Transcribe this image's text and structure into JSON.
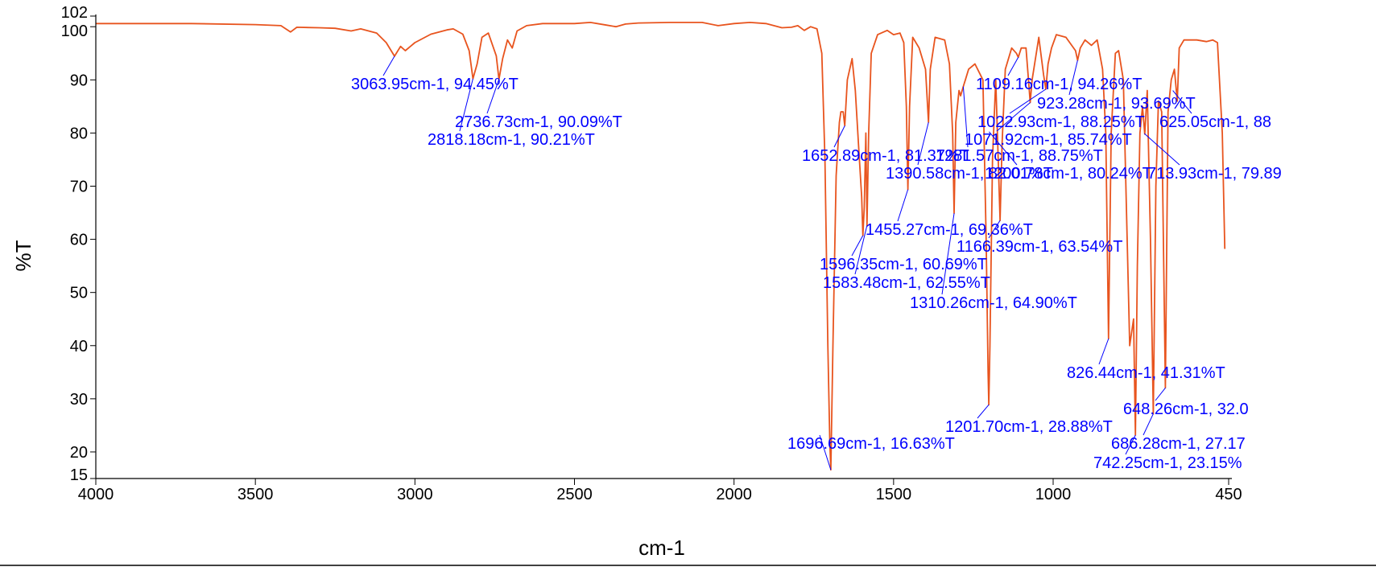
{
  "chart_data": {
    "type": "line",
    "title": "",
    "xlabel": "cm-1",
    "ylabel": "%T",
    "xlim": [
      4000,
      450
    ],
    "ylim": [
      15,
      102
    ],
    "x_reversed": true,
    "x_ticks": [
      4000,
      3500,
      3000,
      2500,
      2000,
      1500,
      1000,
      450
    ],
    "x_tick_labels": [
      "4000",
      "3500",
      "3000",
      "2500",
      "2000",
      "1500",
      "1000",
      "450"
    ],
    "y_ticks": [
      15,
      20,
      30,
      40,
      50,
      60,
      70,
      80,
      90,
      100,
      102
    ],
    "y_tick_labels": [
      "15",
      "20",
      "30",
      "40",
      "50",
      "60",
      "70",
      "80",
      "90",
      "100",
      "102"
    ],
    "grid": false,
    "colors": {
      "line": "#e8541e",
      "annotation": "#0000ff",
      "axis": "#000000"
    },
    "series": [
      {
        "values": [
          [
            4000,
            100.6
          ],
          [
            3900,
            100.6
          ],
          [
            3700,
            100.6
          ],
          [
            3500,
            100.4
          ],
          [
            3420,
            100.2
          ],
          [
            3390,
            99.0
          ],
          [
            3370,
            99.9
          ],
          [
            3300,
            99.8
          ],
          [
            3250,
            99.7
          ],
          [
            3200,
            99.2
          ],
          [
            3170,
            99.6
          ],
          [
            3120,
            98.8
          ],
          [
            3090,
            97.0
          ],
          [
            3063.95,
            94.45
          ],
          [
            3045,
            96.3
          ],
          [
            3030,
            95.5
          ],
          [
            3000,
            97.0
          ],
          [
            2950,
            98.6
          ],
          [
            2900,
            99.4
          ],
          [
            2880,
            99.6
          ],
          [
            2850,
            98.6
          ],
          [
            2830,
            95.5
          ],
          [
            2818.18,
            90.21
          ],
          [
            2805,
            93.0
          ],
          [
            2790,
            98.0
          ],
          [
            2770,
            98.8
          ],
          [
            2745,
            94.5
          ],
          [
            2736.73,
            90.09
          ],
          [
            2725,
            94.0
          ],
          [
            2710,
            97.5
          ],
          [
            2695,
            96.0
          ],
          [
            2680,
            99.2
          ],
          [
            2650,
            100.2
          ],
          [
            2600,
            100.6
          ],
          [
            2550,
            100.6
          ],
          [
            2500,
            100.6
          ],
          [
            2450,
            100.8
          ],
          [
            2400,
            100.3
          ],
          [
            2370,
            100.0
          ],
          [
            2340,
            100.5
          ],
          [
            2300,
            100.7
          ],
          [
            2200,
            100.8
          ],
          [
            2100,
            100.8
          ],
          [
            2050,
            100.2
          ],
          [
            2000,
            100.6
          ],
          [
            1950,
            100.8
          ],
          [
            1900,
            100.6
          ],
          [
            1850,
            99.8
          ],
          [
            1820,
            99.9
          ],
          [
            1800,
            100.2
          ],
          [
            1780,
            99.3
          ],
          [
            1760,
            100.0
          ],
          [
            1740,
            99.6
          ],
          [
            1725,
            95.0
          ],
          [
            1715,
            75.0
          ],
          [
            1706,
            40.0
          ],
          [
            1700,
            22.0
          ],
          [
            1696.69,
            16.63
          ],
          [
            1690,
            40.0
          ],
          [
            1680,
            72.0
          ],
          [
            1670,
            82.0
          ],
          [
            1665,
            84.0
          ],
          [
            1658,
            84.0
          ],
          [
            1652.89,
            81.37
          ],
          [
            1645,
            90.0
          ],
          [
            1630,
            94.0
          ],
          [
            1620,
            88.0
          ],
          [
            1610,
            78.0
          ],
          [
            1600,
            68.0
          ],
          [
            1596.35,
            60.69
          ],
          [
            1592,
            66.0
          ],
          [
            1587,
            80.0
          ],
          [
            1583.48,
            62.55
          ],
          [
            1578,
            80.0
          ],
          [
            1570,
            95.0
          ],
          [
            1550,
            98.5
          ],
          [
            1520,
            99.3
          ],
          [
            1500,
            98.5
          ],
          [
            1480,
            98.8
          ],
          [
            1468,
            97.0
          ],
          [
            1460,
            85.0
          ],
          [
            1455.27,
            69.36
          ],
          [
            1450,
            85.0
          ],
          [
            1440,
            98.0
          ],
          [
            1420,
            96.0
          ],
          [
            1400,
            92.0
          ],
          [
            1390.58,
            82.01
          ],
          [
            1385,
            92.0
          ],
          [
            1370,
            98.0
          ],
          [
            1340,
            97.5
          ],
          [
            1325,
            93.0
          ],
          [
            1315,
            80.0
          ],
          [
            1310.26,
            64.9
          ],
          [
            1305,
            82.0
          ],
          [
            1295,
            88.0
          ],
          [
            1290,
            87.0
          ],
          [
            1281.57,
            88.75
          ],
          [
            1275,
            90.0
          ],
          [
            1265,
            92.0
          ],
          [
            1245,
            93.0
          ],
          [
            1220,
            90.0
          ],
          [
            1210,
            60.0
          ],
          [
            1204,
            35.0
          ],
          [
            1201.7,
            28.88
          ],
          [
            1198,
            40.0
          ],
          [
            1190,
            75.0
          ],
          [
            1180,
            90.0
          ],
          [
            1172,
            75.0
          ],
          [
            1166.39,
            63.54
          ],
          [
            1160,
            78.0
          ],
          [
            1150,
            92.0
          ],
          [
            1130,
            96.0
          ],
          [
            1115,
            95.0
          ],
          [
            1109.16,
            94.26
          ],
          [
            1100,
            96.0
          ],
          [
            1085,
            96.0
          ],
          [
            1076,
            89.0
          ],
          [
            1071.92,
            85.74
          ],
          [
            1066,
            90.0
          ],
          [
            1045,
            98.0
          ],
          [
            1030,
            91.0
          ],
          [
            1022.93,
            88.25
          ],
          [
            1016,
            93.0
          ],
          [
            1005,
            96.0
          ],
          [
            990,
            98.5
          ],
          [
            960,
            98.0
          ],
          [
            930,
            95.5
          ],
          [
            923.28,
            93.69
          ],
          [
            915,
            96.0
          ],
          [
            900,
            97.5
          ],
          [
            880,
            96.5
          ],
          [
            862,
            97.5
          ],
          [
            845,
            92.0
          ],
          [
            835,
            80.0
          ],
          [
            826.44,
            41.31
          ],
          [
            818,
            80.0
          ],
          [
            805,
            95.0
          ],
          [
            795,
            95.5
          ],
          [
            780,
            90.0
          ],
          [
            760,
            40.0
          ],
          [
            748,
            45.0
          ],
          [
            742.25,
            23.15
          ],
          [
            736,
            55.0
          ],
          [
            728,
            80.0
          ],
          [
            720,
            85.0
          ],
          [
            713,
            79.8
          ],
          [
            705,
            88.0
          ],
          [
            695,
            60.0
          ],
          [
            686.28,
            27.17
          ],
          [
            678,
            70.0
          ],
          [
            670,
            86.0
          ],
          [
            660,
            84.0
          ],
          [
            648.26,
            32.05
          ],
          [
            640,
            84.0
          ],
          [
            630,
            90.0
          ],
          [
            620,
            92.0
          ],
          [
            611,
            86.0
          ],
          [
            605,
            96.0
          ],
          [
            590,
            97.5
          ],
          [
            550,
            97.5
          ],
          [
            520,
            97.2
          ],
          [
            500,
            97.5
          ],
          [
            485,
            97.0
          ],
          [
            470,
            80.0
          ],
          [
            462,
            58.2
          ]
        ]
      }
    ],
    "annotations": [
      {
        "text": "3063.95cm-1, 94.45%T",
        "x": 3063.95,
        "y": 94.45
      },
      {
        "text": "2736.73cm-1, 90.09%T",
        "x": 2736.73,
        "y": 90.09
      },
      {
        "text": "2818.18cm-1, 90.21%T",
        "x": 2818.18,
        "y": 90.21
      },
      {
        "text": "1109.16cm-1, 94.26%T",
        "x": 1109.16,
        "y": 94.26
      },
      {
        "text": "923.28cm-1, 93.69%T",
        "x": 923.28,
        "y": 93.69
      },
      {
        "text": "1022.93cm-1, 88.25%T",
        "x": 1022.93,
        "y": 88.25
      },
      {
        "text": "625.05cm-1, 88",
        "x": 625.05,
        "y": 88
      },
      {
        "text": "1071.92cm-1, 85.74%T",
        "x": 1071.92,
        "y": 85.74
      },
      {
        "text": "1652.89cm-1, 81.37%T",
        "x": 1652.89,
        "y": 81.37
      },
      {
        "text": "1281.57cm-1, 88.75%T",
        "x": 1281.57,
        "y": 88.75
      },
      {
        "text": "1390.58cm-1, 82.01%T",
        "x": 1390.58,
        "y": 82.01
      },
      {
        "text": "1200.78cm-1, 80.24%T",
        "x": 1200.78,
        "y": 80.24
      },
      {
        "text": "713.93cm-1, 79.89",
        "x": 713.93,
        "y": 79.89
      },
      {
        "text": "1455.27cm-1, 69.36%T",
        "x": 1455.27,
        "y": 69.36
      },
      {
        "text": "1166.39cm-1, 63.54%T",
        "x": 1166.39,
        "y": 63.54
      },
      {
        "text": "1596.35cm-1, 60.69%T",
        "x": 1596.35,
        "y": 60.69
      },
      {
        "text": "1583.48cm-1, 62.55%T",
        "x": 1583.48,
        "y": 62.55
      },
      {
        "text": "1310.26cm-1, 64.90%T",
        "x": 1310.26,
        "y": 64.9
      },
      {
        "text": "826.44cm-1, 41.31%T",
        "x": 826.44,
        "y": 41.31
      },
      {
        "text": "648.26cm-1, 32.0",
        "x": 648.26,
        "y": 32.05
      },
      {
        "text": "1201.70cm-1, 28.88%T",
        "x": 1201.7,
        "y": 28.88
      },
      {
        "text": "686.28cm-1, 27.17",
        "x": 686.28,
        "y": 27.17
      },
      {
        "text": "1696.69cm-1, 16.63%T",
        "x": 1696.69,
        "y": 16.63
      },
      {
        "text": "742.25cm-1, 23.15%",
        "x": 742.25,
        "y": 23.15
      }
    ]
  }
}
